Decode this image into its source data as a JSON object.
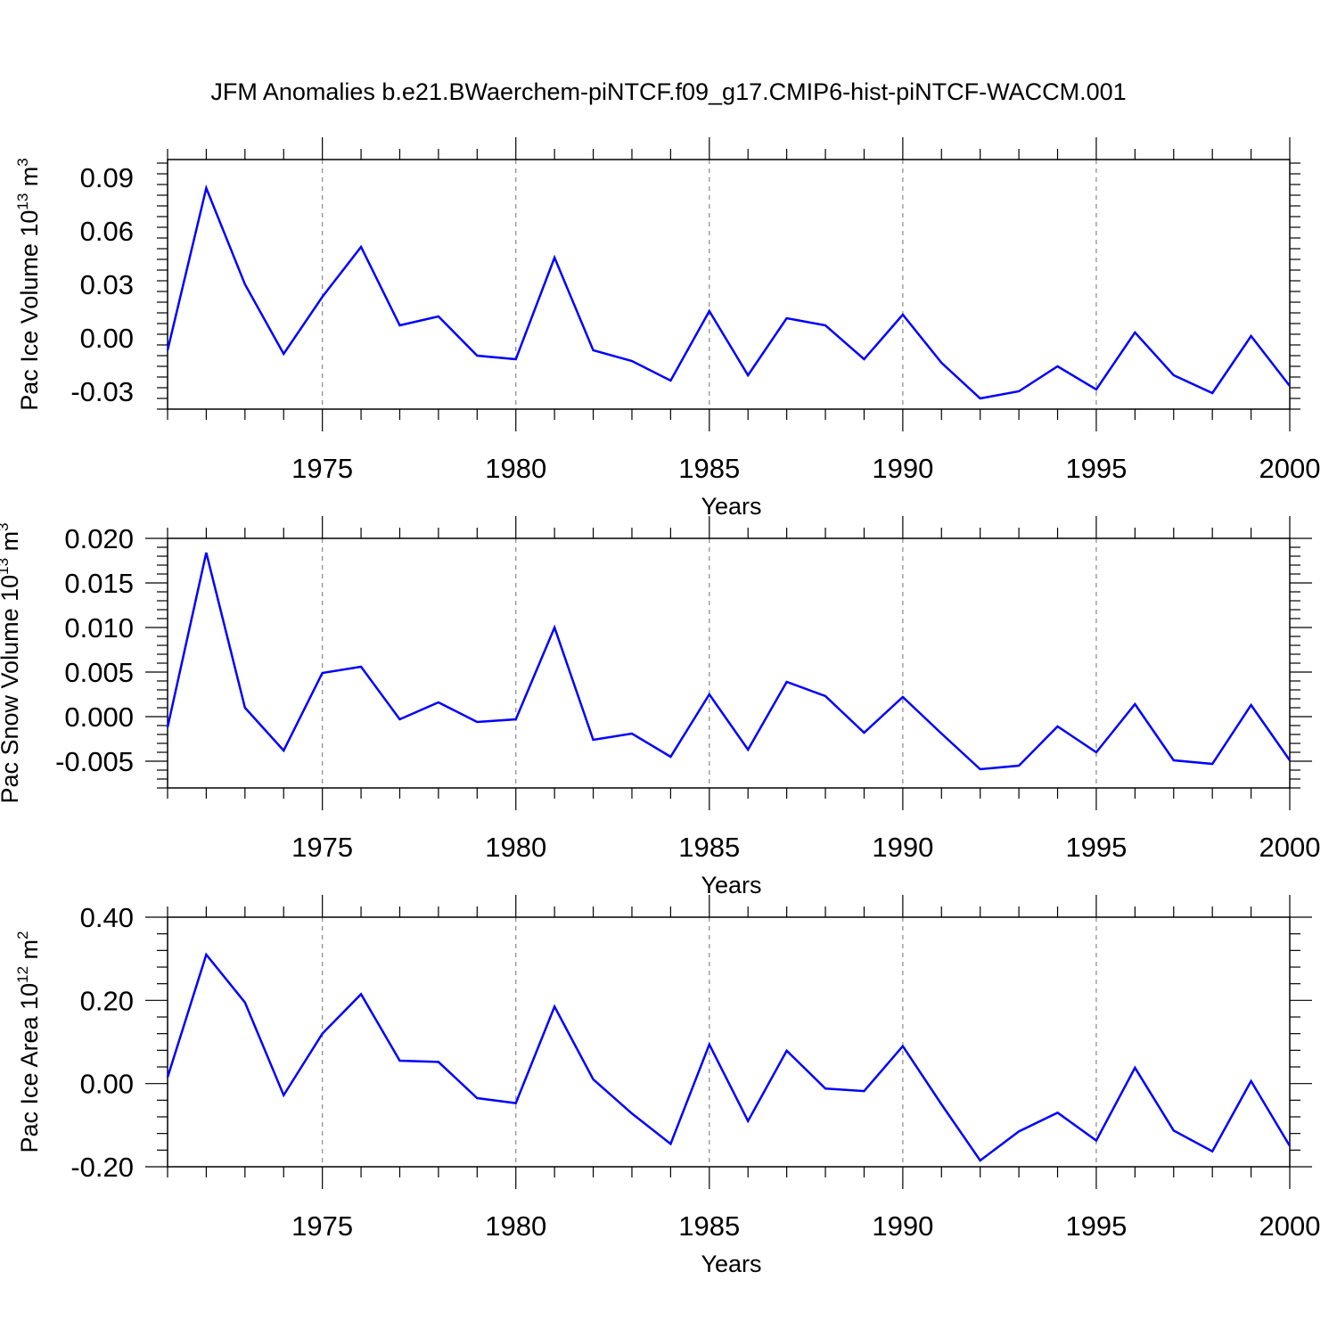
{
  "title": "JFM Anomalies b.e21.BWaerchem-piNTCF.f09_g17.CMIP6-hist-piNTCF-WACCM.001",
  "colors": {
    "line": "#0000ff",
    "axes": "#000000",
    "grid": "#888888",
    "background": "#ffffff"
  },
  "chart_data": [
    {
      "type": "line",
      "ylabel": {
        "text": "Pac Ice Volume 10",
        "exponent": "13",
        "unit": " m",
        "unit_exponent": "3"
      },
      "xlabel": "Years",
      "xlim": [
        1971,
        2000
      ],
      "ylim": [
        -0.04,
        0.1
      ],
      "yticks": [
        -0.03,
        0.0,
        0.03,
        0.06,
        0.09
      ],
      "ytick_labels": [
        "-0.03",
        "0.00",
        "0.03",
        "0.06",
        "0.09"
      ],
      "xticks": [
        1975,
        1980,
        1985,
        1990,
        1995,
        2000
      ],
      "xtick_labels": [
        "1975",
        "1980",
        "1985",
        "1990",
        "1995",
        "2000"
      ],
      "grid_x": [
        1975,
        1980,
        1985,
        1990,
        1995
      ],
      "x": [
        1971,
        1972,
        1973,
        1974,
        1975,
        1976,
        1977,
        1978,
        1979,
        1980,
        1981,
        1982,
        1983,
        1984,
        1985,
        1986,
        1987,
        1988,
        1989,
        1990,
        1991,
        1992,
        1993,
        1994,
        1995,
        1996,
        1997,
        1998,
        1999,
        2000
      ],
      "series": [
        {
          "name": "Pac Ice Volume",
          "values": [
            -0.007,
            0.084,
            0.03,
            -0.009,
            0.023,
            0.051,
            0.007,
            0.012,
            -0.01,
            -0.012,
            0.045,
            -0.007,
            -0.013,
            -0.024,
            0.015,
            -0.021,
            0.011,
            0.007,
            -0.012,
            0.013,
            -0.014,
            -0.034,
            -0.03,
            -0.016,
            -0.029,
            0.003,
            -0.021,
            -0.031,
            0.001,
            -0.027
          ]
        }
      ]
    },
    {
      "type": "line",
      "ylabel": {
        "text": "Pac Snow Volume 10",
        "exponent": "13",
        "unit": " m",
        "unit_exponent": "3"
      },
      "xlabel": "Years",
      "xlim": [
        1971,
        2000
      ],
      "ylim": [
        -0.008,
        0.02
      ],
      "yticks": [
        -0.005,
        0.0,
        0.005,
        0.01,
        0.015,
        0.02
      ],
      "ytick_labels": [
        "-0.005",
        "0.000",
        "0.005",
        "0.010",
        "0.015",
        "0.020"
      ],
      "xticks": [
        1975,
        1980,
        1985,
        1990,
        1995,
        2000
      ],
      "xtick_labels": [
        "1975",
        "1980",
        "1985",
        "1990",
        "1995",
        "2000"
      ],
      "grid_x": [
        1975,
        1980,
        1985,
        1990,
        1995
      ],
      "x": [
        1971,
        1972,
        1973,
        1974,
        1975,
        1976,
        1977,
        1978,
        1979,
        1980,
        1981,
        1982,
        1983,
        1984,
        1985,
        1986,
        1987,
        1988,
        1989,
        1990,
        1991,
        1992,
        1993,
        1994,
        1995,
        1996,
        1997,
        1998,
        1999,
        2000
      ],
      "series": [
        {
          "name": "Pac Snow Volume",
          "values": [
            -0.0012,
            0.0184,
            0.001,
            -0.0038,
            0.0049,
            0.0056,
            -0.0003,
            0.0016,
            -0.0006,
            -0.0003,
            0.01,
            -0.0026,
            -0.0019,
            -0.0045,
            0.0025,
            -0.0037,
            0.0039,
            0.0023,
            -0.0018,
            0.0022,
            -0.0019,
            -0.0059,
            -0.0055,
            -0.0011,
            -0.004,
            0.0014,
            -0.0049,
            -0.0053,
            0.0013,
            -0.0049
          ]
        }
      ]
    },
    {
      "type": "line",
      "ylabel": {
        "text": "Pac Ice Area 10",
        "exponent": "12",
        "unit": " m",
        "unit_exponent": "2"
      },
      "xlabel": "Years",
      "xlim": [
        1971,
        2000
      ],
      "ylim": [
        -0.2,
        0.4
      ],
      "yticks": [
        -0.2,
        0.0,
        0.2,
        0.4
      ],
      "ytick_labels": [
        "-0.20",
        "0.00",
        "0.20",
        "0.40"
      ],
      "xticks": [
        1975,
        1980,
        1985,
        1990,
        1995,
        2000
      ],
      "xtick_labels": [
        "1975",
        "1980",
        "1985",
        "1990",
        "1995",
        "2000"
      ],
      "grid_x": [
        1975,
        1980,
        1985,
        1990,
        1995
      ],
      "x": [
        1971,
        1972,
        1973,
        1974,
        1975,
        1976,
        1977,
        1978,
        1979,
        1980,
        1981,
        1982,
        1983,
        1984,
        1985,
        1986,
        1987,
        1988,
        1989,
        1990,
        1991,
        1992,
        1993,
        1994,
        1995,
        1996,
        1997,
        1998,
        1999,
        2000
      ],
      "series": [
        {
          "name": "Pac Ice Area",
          "values": [
            0.015,
            0.31,
            0.195,
            -0.028,
            0.12,
            0.215,
            0.055,
            0.052,
            -0.035,
            -0.047,
            0.185,
            0.01,
            -0.072,
            -0.145,
            0.094,
            -0.09,
            0.079,
            -0.012,
            -0.018,
            0.09,
            -0.05,
            -0.185,
            -0.115,
            -0.07,
            -0.137,
            0.038,
            -0.113,
            -0.163,
            0.006,
            -0.15
          ]
        }
      ]
    }
  ]
}
